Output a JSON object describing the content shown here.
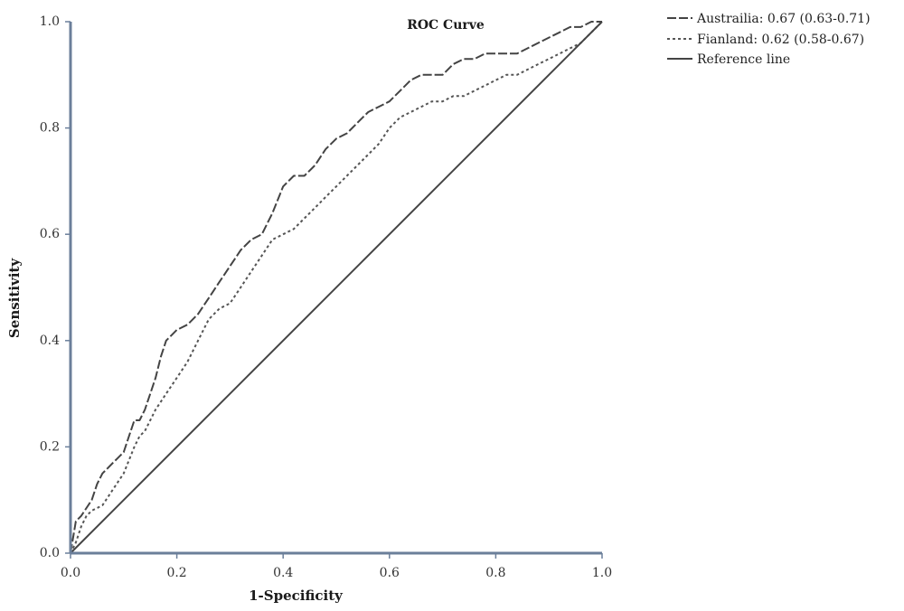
{
  "chart_data": {
    "type": "line",
    "title": "ROC Curve",
    "xlabel": "1-Specificity",
    "ylabel": "Sensitivity",
    "xlim": [
      0,
      1
    ],
    "ylim": [
      0,
      1
    ],
    "x_ticks": [
      "0.0",
      "0.2",
      "0.4",
      "0.6",
      "0.8",
      "1.0"
    ],
    "y_ticks": [
      "0.0",
      "0.2",
      "0.4",
      "0.6",
      "0.8",
      "1.0"
    ],
    "legend_position": "top-right",
    "grid": false,
    "series": [
      {
        "name": "Austrailia: 0.67 (0.63-0.71)",
        "style": "long-dash",
        "color": "#444444",
        "x": [
          0,
          0.01,
          0.02,
          0.04,
          0.05,
          0.06,
          0.07,
          0.08,
          0.09,
          0.1,
          0.11,
          0.12,
          0.13,
          0.14,
          0.15,
          0.16,
          0.17,
          0.18,
          0.19,
          0.2,
          0.22,
          0.24,
          0.26,
          0.28,
          0.3,
          0.32,
          0.34,
          0.36,
          0.38,
          0.4,
          0.41,
          0.42,
          0.44,
          0.46,
          0.48,
          0.5,
          0.52,
          0.54,
          0.56,
          0.58,
          0.6,
          0.62,
          0.64,
          0.66,
          0.68,
          0.7,
          0.72,
          0.74,
          0.76,
          0.78,
          0.8,
          0.82,
          0.84,
          0.86,
          0.88,
          0.9,
          0.92,
          0.94,
          0.96,
          0.98,
          1.0
        ],
        "y": [
          0,
          0.06,
          0.07,
          0.1,
          0.13,
          0.15,
          0.16,
          0.17,
          0.18,
          0.19,
          0.22,
          0.25,
          0.25,
          0.27,
          0.3,
          0.33,
          0.37,
          0.4,
          0.41,
          0.42,
          0.43,
          0.45,
          0.48,
          0.51,
          0.54,
          0.57,
          0.59,
          0.6,
          0.64,
          0.69,
          0.7,
          0.71,
          0.71,
          0.73,
          0.76,
          0.78,
          0.79,
          0.81,
          0.83,
          0.84,
          0.85,
          0.87,
          0.89,
          0.9,
          0.9,
          0.9,
          0.92,
          0.93,
          0.93,
          0.94,
          0.94,
          0.94,
          0.94,
          0.95,
          0.96,
          0.97,
          0.98,
          0.99,
          0.99,
          1.0,
          1.0
        ]
      },
      {
        "name": "Fianland: 0.62 (0.58-0.67)",
        "style": "short-dash",
        "color": "#555555",
        "x": [
          0,
          0.01,
          0.02,
          0.03,
          0.04,
          0.06,
          0.08,
          0.1,
          0.12,
          0.13,
          0.14,
          0.15,
          0.16,
          0.18,
          0.2,
          0.22,
          0.24,
          0.26,
          0.28,
          0.3,
          0.32,
          0.34,
          0.36,
          0.38,
          0.4,
          0.42,
          0.44,
          0.46,
          0.48,
          0.5,
          0.52,
          0.54,
          0.56,
          0.58,
          0.6,
          0.62,
          0.64,
          0.66,
          0.68,
          0.7,
          0.72,
          0.74,
          0.76,
          0.78,
          0.8,
          0.82,
          0.84,
          0.86,
          0.88,
          0.9,
          0.92,
          0.94,
          0.96,
          0.98,
          1.0
        ],
        "y": [
          0,
          0.02,
          0.05,
          0.07,
          0.08,
          0.09,
          0.12,
          0.15,
          0.2,
          0.22,
          0.23,
          0.25,
          0.27,
          0.3,
          0.33,
          0.36,
          0.4,
          0.44,
          0.46,
          0.47,
          0.5,
          0.53,
          0.56,
          0.59,
          0.6,
          0.61,
          0.63,
          0.65,
          0.67,
          0.69,
          0.71,
          0.73,
          0.75,
          0.77,
          0.8,
          0.82,
          0.83,
          0.84,
          0.85,
          0.85,
          0.86,
          0.86,
          0.87,
          0.88,
          0.89,
          0.9,
          0.9,
          0.91,
          0.92,
          0.93,
          0.94,
          0.95,
          0.96,
          0.98,
          1.0
        ]
      },
      {
        "name": "Reference line",
        "style": "solid",
        "color": "#444444",
        "x": [
          0,
          1
        ],
        "y": [
          0,
          1
        ]
      }
    ]
  }
}
